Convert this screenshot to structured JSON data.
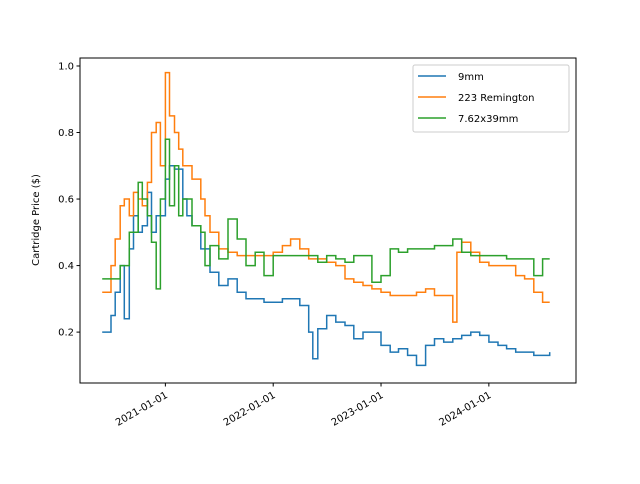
{
  "chart_data": {
    "type": "line",
    "title": "",
    "xlabel": "",
    "ylabel": "Cartridge Price ($)",
    "xlim": [
      "2020-03-18",
      "2024-10-22"
    ],
    "ylim": [
      0.047,
      1.024
    ],
    "xticks": [
      "2021-01-01",
      "2022-01-01",
      "2023-01-01",
      "2024-01-01"
    ],
    "yticks": [
      0.2,
      0.4,
      0.6,
      0.8,
      1.0
    ],
    "ytick_labels": [
      "0.2",
      "0.4",
      "0.6",
      "0.8",
      "1.0"
    ],
    "grid": false,
    "legend_position": "top-right",
    "series": [
      {
        "name": "9mm",
        "color": "#1f77b4",
        "points": [
          [
            "2020-06-01",
            0.2
          ],
          [
            "2020-07-01",
            0.25
          ],
          [
            "2020-07-15",
            0.32
          ],
          [
            "2020-08-01",
            0.4
          ],
          [
            "2020-08-15",
            0.24
          ],
          [
            "2020-09-01",
            0.45
          ],
          [
            "2020-09-15",
            0.55
          ],
          [
            "2020-10-01",
            0.5
          ],
          [
            "2020-10-15",
            0.52
          ],
          [
            "2020-11-01",
            0.62
          ],
          [
            "2020-11-15",
            0.5
          ],
          [
            "2020-12-01",
            0.55
          ],
          [
            "2021-01-01",
            0.66
          ],
          [
            "2021-01-15",
            0.7
          ],
          [
            "2021-02-01",
            0.69
          ],
          [
            "2021-03-01",
            0.6
          ],
          [
            "2021-03-15",
            0.55
          ],
          [
            "2021-04-01",
            0.52
          ],
          [
            "2021-05-01",
            0.45
          ],
          [
            "2021-06-01",
            0.38
          ],
          [
            "2021-07-01",
            0.34
          ],
          [
            "2021-08-01",
            0.36
          ],
          [
            "2021-09-01",
            0.32
          ],
          [
            "2021-10-01",
            0.3
          ],
          [
            "2021-11-01",
            0.3
          ],
          [
            "2021-12-01",
            0.29
          ],
          [
            "2022-01-01",
            0.29
          ],
          [
            "2022-02-01",
            0.3
          ],
          [
            "2022-03-01",
            0.3
          ],
          [
            "2022-04-01",
            0.28
          ],
          [
            "2022-05-01",
            0.2
          ],
          [
            "2022-05-15",
            0.12
          ],
          [
            "2022-06-01",
            0.21
          ],
          [
            "2022-07-01",
            0.25
          ],
          [
            "2022-08-01",
            0.23
          ],
          [
            "2022-09-01",
            0.22
          ],
          [
            "2022-10-01",
            0.18
          ],
          [
            "2022-11-01",
            0.2
          ],
          [
            "2023-01-01",
            0.16
          ],
          [
            "2023-02-01",
            0.14
          ],
          [
            "2023-03-01",
            0.15
          ],
          [
            "2023-04-01",
            0.13
          ],
          [
            "2023-05-01",
            0.1
          ],
          [
            "2023-06-01",
            0.16
          ],
          [
            "2023-07-01",
            0.18
          ],
          [
            "2023-08-01",
            0.17
          ],
          [
            "2023-09-01",
            0.18
          ],
          [
            "2023-10-01",
            0.19
          ],
          [
            "2023-11-01",
            0.2
          ],
          [
            "2023-12-01",
            0.19
          ],
          [
            "2024-01-01",
            0.17
          ],
          [
            "2024-02-01",
            0.16
          ],
          [
            "2024-03-01",
            0.15
          ],
          [
            "2024-04-01",
            0.14
          ],
          [
            "2024-05-01",
            0.14
          ],
          [
            "2024-06-01",
            0.13
          ],
          [
            "2024-07-01",
            0.13
          ],
          [
            "2024-07-25",
            0.14
          ]
        ]
      },
      {
        "name": "223 Remington",
        "color": "#ff7f0e",
        "points": [
          [
            "2020-06-01",
            0.32
          ],
          [
            "2020-07-01",
            0.4
          ],
          [
            "2020-07-15",
            0.48
          ],
          [
            "2020-08-01",
            0.58
          ],
          [
            "2020-08-15",
            0.6
          ],
          [
            "2020-09-01",
            0.55
          ],
          [
            "2020-09-15",
            0.62
          ],
          [
            "2020-10-01",
            0.6
          ],
          [
            "2020-10-15",
            0.58
          ],
          [
            "2020-11-01",
            0.65
          ],
          [
            "2020-11-15",
            0.8
          ],
          [
            "2020-12-01",
            0.83
          ],
          [
            "2020-12-15",
            0.7
          ],
          [
            "2021-01-01",
            0.98
          ],
          [
            "2021-01-15",
            0.85
          ],
          [
            "2021-02-01",
            0.8
          ],
          [
            "2021-02-15",
            0.75
          ],
          [
            "2021-03-01",
            0.7
          ],
          [
            "2021-04-01",
            0.66
          ],
          [
            "2021-05-01",
            0.6
          ],
          [
            "2021-05-15",
            0.55
          ],
          [
            "2021-06-01",
            0.5
          ],
          [
            "2021-07-01",
            0.45
          ],
          [
            "2021-08-01",
            0.44
          ],
          [
            "2021-09-01",
            0.43
          ],
          [
            "2021-10-01",
            0.43
          ],
          [
            "2021-11-01",
            0.43
          ],
          [
            "2021-12-01",
            0.43
          ],
          [
            "2022-01-01",
            0.44
          ],
          [
            "2022-02-01",
            0.46
          ],
          [
            "2022-03-01",
            0.48
          ],
          [
            "2022-04-01",
            0.45
          ],
          [
            "2022-05-01",
            0.42
          ],
          [
            "2022-06-01",
            0.42
          ],
          [
            "2022-07-01",
            0.41
          ],
          [
            "2022-08-01",
            0.4
          ],
          [
            "2022-09-01",
            0.36
          ],
          [
            "2022-10-01",
            0.35
          ],
          [
            "2022-11-01",
            0.34
          ],
          [
            "2022-12-01",
            0.33
          ],
          [
            "2023-01-01",
            0.32
          ],
          [
            "2023-02-01",
            0.31
          ],
          [
            "2023-03-01",
            0.31
          ],
          [
            "2023-04-01",
            0.31
          ],
          [
            "2023-05-01",
            0.32
          ],
          [
            "2023-06-01",
            0.33
          ],
          [
            "2023-07-01",
            0.31
          ],
          [
            "2023-08-01",
            0.31
          ],
          [
            "2023-09-01",
            0.23
          ],
          [
            "2023-09-15",
            0.44
          ],
          [
            "2023-10-01",
            0.47
          ],
          [
            "2023-11-01",
            0.44
          ],
          [
            "2023-12-01",
            0.41
          ],
          [
            "2024-01-01",
            0.4
          ],
          [
            "2024-02-01",
            0.4
          ],
          [
            "2024-03-01",
            0.4
          ],
          [
            "2024-04-01",
            0.37
          ],
          [
            "2024-05-01",
            0.36
          ],
          [
            "2024-06-01",
            0.32
          ],
          [
            "2024-07-01",
            0.29
          ],
          [
            "2024-07-25",
            0.29
          ]
        ]
      },
      {
        "name": "7.62x39mm",
        "color": "#2ca02c",
        "points": [
          [
            "2020-06-01",
            0.36
          ],
          [
            "2020-07-01",
            0.36
          ],
          [
            "2020-08-01",
            0.4
          ],
          [
            "2020-09-01",
            0.5
          ],
          [
            "2020-10-01",
            0.65
          ],
          [
            "2020-10-15",
            0.6
          ],
          [
            "2020-11-01",
            0.55
          ],
          [
            "2020-11-15",
            0.47
          ],
          [
            "2020-12-01",
            0.33
          ],
          [
            "2020-12-15",
            0.6
          ],
          [
            "2021-01-01",
            0.78
          ],
          [
            "2021-01-15",
            0.58
          ],
          [
            "2021-02-01",
            0.7
          ],
          [
            "2021-02-15",
            0.55
          ],
          [
            "2021-03-01",
            0.6
          ],
          [
            "2021-04-01",
            0.52
          ],
          [
            "2021-05-01",
            0.5
          ],
          [
            "2021-05-15",
            0.4
          ],
          [
            "2021-06-01",
            0.46
          ],
          [
            "2021-07-01",
            0.42
          ],
          [
            "2021-08-01",
            0.54
          ],
          [
            "2021-09-01",
            0.48
          ],
          [
            "2021-10-01",
            0.4
          ],
          [
            "2021-11-01",
            0.44
          ],
          [
            "2021-12-01",
            0.37
          ],
          [
            "2022-01-01",
            0.43
          ],
          [
            "2022-02-01",
            0.43
          ],
          [
            "2022-03-01",
            0.43
          ],
          [
            "2022-04-01",
            0.43
          ],
          [
            "2022-05-01",
            0.43
          ],
          [
            "2022-06-01",
            0.41
          ],
          [
            "2022-07-01",
            0.43
          ],
          [
            "2022-08-01",
            0.42
          ],
          [
            "2022-09-01",
            0.41
          ],
          [
            "2022-10-01",
            0.43
          ],
          [
            "2022-11-01",
            0.43
          ],
          [
            "2022-12-01",
            0.35
          ],
          [
            "2023-01-01",
            0.37
          ],
          [
            "2023-02-01",
            0.45
          ],
          [
            "2023-03-01",
            0.44
          ],
          [
            "2023-04-01",
            0.45
          ],
          [
            "2023-05-01",
            0.45
          ],
          [
            "2023-06-01",
            0.45
          ],
          [
            "2023-07-01",
            0.46
          ],
          [
            "2023-08-01",
            0.46
          ],
          [
            "2023-09-01",
            0.48
          ],
          [
            "2023-10-01",
            0.44
          ],
          [
            "2023-11-01",
            0.43
          ],
          [
            "2023-12-01",
            0.43
          ],
          [
            "2024-01-01",
            0.43
          ],
          [
            "2024-02-01",
            0.43
          ],
          [
            "2024-03-01",
            0.42
          ],
          [
            "2024-04-01",
            0.42
          ],
          [
            "2024-05-01",
            0.42
          ],
          [
            "2024-06-01",
            0.37
          ],
          [
            "2024-07-01",
            0.42
          ],
          [
            "2024-07-25",
            0.42
          ]
        ]
      }
    ]
  }
}
